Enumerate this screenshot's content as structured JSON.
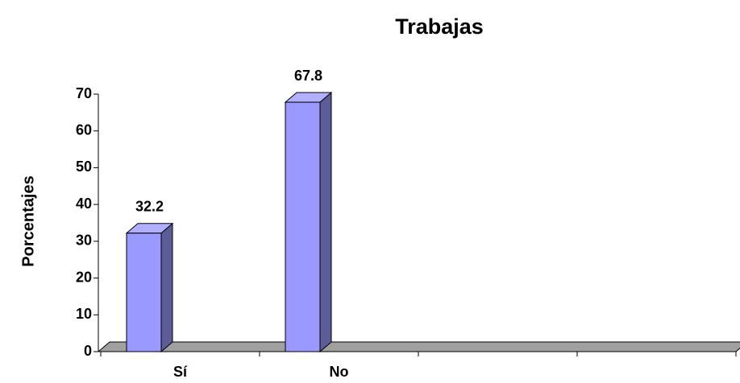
{
  "chart_data": {
    "type": "bar3d",
    "title": "Trabajas",
    "y_label": "Porcentajes",
    "categories": [
      "Sí",
      "No",
      null,
      null
    ],
    "values": [
      32.2,
      67.8,
      null,
      null
    ],
    "color": "#9999ff",
    "ylim": [
      0,
      70
    ],
    "yticks": [
      0,
      10,
      20,
      30,
      40,
      50,
      60,
      70
    ],
    "grid": false
  }
}
